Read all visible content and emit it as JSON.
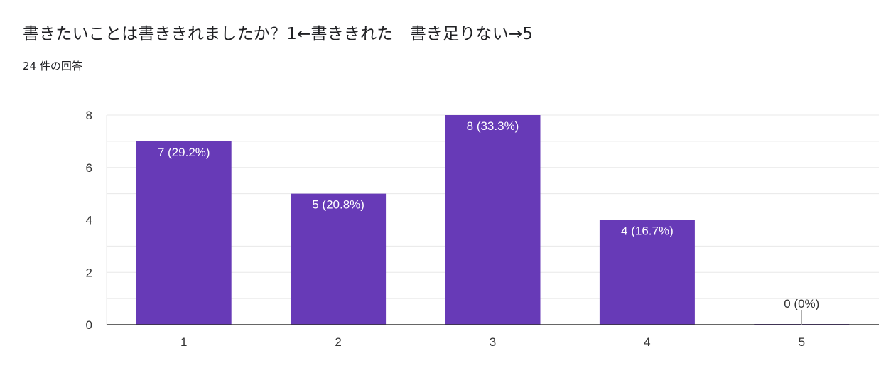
{
  "header": {
    "title": "書きたいことは書ききれましたか？1←書ききれた　書き足りない→5",
    "response_count": "24 件の回答"
  },
  "colors": {
    "bar": "#673ab7",
    "bar_label": "#ffffff",
    "outside_label": "#333333",
    "grid": "#e8e8e8",
    "axis": "#333333"
  },
  "chart_data": {
    "type": "bar",
    "title": "",
    "xlabel": "",
    "ylabel": "",
    "categories": [
      "1",
      "2",
      "3",
      "4",
      "5"
    ],
    "values": [
      7,
      5,
      8,
      4,
      0
    ],
    "labels": [
      "7 (29.2%)",
      "5 (20.8%)",
      "8 (33.3%)",
      "4 (16.7%)",
      "0 (0%)"
    ],
    "ylim": [
      0,
      8
    ],
    "yticks": [
      "0",
      "2",
      "4",
      "6",
      "8"
    ],
    "grid": true,
    "legend": "none"
  }
}
